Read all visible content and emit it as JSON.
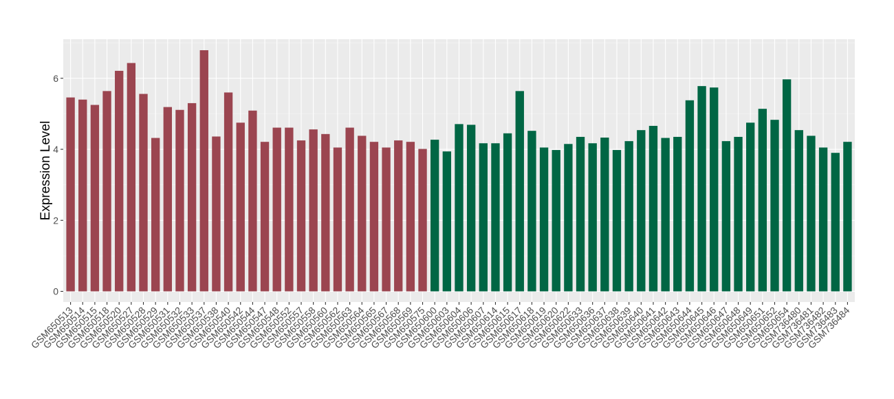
{
  "chart_data": {
    "type": "bar",
    "title": "",
    "xlabel": "",
    "ylabel": "Expression Level",
    "ylim": [
      -0.3,
      7.1
    ],
    "yticks": [
      0,
      2,
      4,
      6
    ],
    "grid": true,
    "colors": {
      "panel": "#ebebeb",
      "grid_major": "#ffffff",
      "grid_minor": "#f5f5f5",
      "text": "#4d4d4d"
    },
    "series": [
      {
        "color": "#9b4550",
        "categories": [
          "GSM650513",
          "GSM650514",
          "GSM650515",
          "GSM650518",
          "GSM650520",
          "GSM650527",
          "GSM650528",
          "GSM650529",
          "GSM650531",
          "GSM650532",
          "GSM650533",
          "GSM650537",
          "GSM650538",
          "GSM650540",
          "GSM650542",
          "GSM650544",
          "GSM650547",
          "GSM650548",
          "GSM650552",
          "GSM650557",
          "GSM650558",
          "GSM650560",
          "GSM650562",
          "GSM650563",
          "GSM650564",
          "GSM650565",
          "GSM650567",
          "GSM650568",
          "GSM650569",
          "GSM650575"
        ],
        "values": [
          5.46,
          5.4,
          5.25,
          5.64,
          6.21,
          6.43,
          5.56,
          4.32,
          5.19,
          5.11,
          5.3,
          6.79,
          4.36,
          5.6,
          4.75,
          5.09,
          4.21,
          4.61,
          4.61,
          4.25,
          4.56,
          4.43,
          4.05,
          4.61,
          4.38,
          4.21,
          4.05,
          4.25,
          4.21,
          4.01
        ]
      },
      {
        "color": "#006644",
        "categories": [
          "GSM650600",
          "GSM650603",
          "GSM650604",
          "GSM650606",
          "GSM650607",
          "GSM650614",
          "GSM650615",
          "GSM650617",
          "GSM650618",
          "GSM650619",
          "GSM650620",
          "GSM650622",
          "GSM650633",
          "GSM650636",
          "GSM650637",
          "GSM650638",
          "GSM650639",
          "GSM650640",
          "GSM650641",
          "GSM650642",
          "GSM650643",
          "GSM650644",
          "GSM650645",
          "GSM650646",
          "GSM650647",
          "GSM650648",
          "GSM650649",
          "GSM650651",
          "GSM650652",
          "GSM650654",
          "GSM736480",
          "GSM736481",
          "GSM736482",
          "GSM736483",
          "GSM736484"
        ],
        "values": [
          4.27,
          3.94,
          4.71,
          4.69,
          4.17,
          4.17,
          4.45,
          5.64,
          4.52,
          4.05,
          3.98,
          4.15,
          4.35,
          4.17,
          4.33,
          3.98,
          4.23,
          4.54,
          4.66,
          4.32,
          4.35,
          5.38,
          5.78,
          5.74,
          4.23,
          4.35,
          4.75,
          5.14,
          4.83,
          5.97,
          4.54,
          4.38,
          4.05,
          3.9,
          4.21
        ]
      }
    ]
  }
}
